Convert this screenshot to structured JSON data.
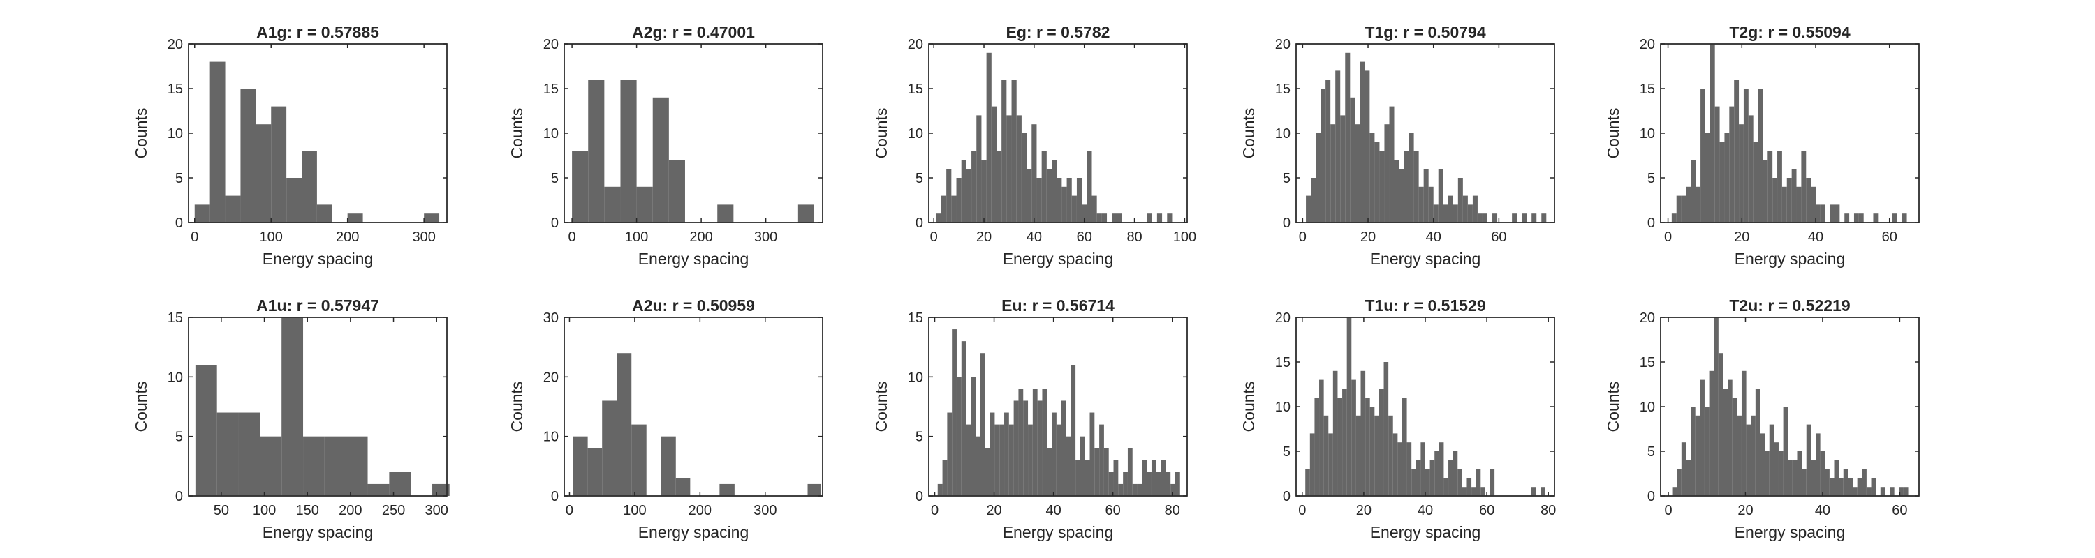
{
  "figure": {
    "bar_color": "#666666",
    "axis_color": "#262626",
    "background": "#ffffff"
  },
  "chart_data": [
    {
      "type": "bar",
      "title": "A1g: r = 0.57885",
      "xlabel": "Energy spacing",
      "ylabel": "Counts",
      "xlim": [
        -8,
        330
      ],
      "ylim": [
        0,
        20
      ],
      "xticks": [
        0,
        100,
        200,
        300
      ],
      "yticks": [
        0,
        5,
        10,
        15,
        20
      ],
      "bins": {
        "edges": [
          0,
          20,
          40,
          60,
          80,
          100,
          120,
          140,
          160,
          180,
          200,
          220,
          240,
          260,
          280,
          300,
          320
        ],
        "counts": [
          2,
          18,
          3,
          15,
          11,
          13,
          5,
          8,
          2,
          0,
          1,
          0,
          0,
          0,
          0,
          1
        ]
      }
    },
    {
      "type": "bar",
      "title": "A2g: r = 0.47001",
      "xlabel": "Energy spacing",
      "ylabel": "Counts",
      "xlim": [
        -12,
        388
      ],
      "ylim": [
        0,
        20
      ],
      "xticks": [
        0,
        100,
        200,
        300
      ],
      "yticks": [
        0,
        5,
        10,
        15,
        20
      ],
      "bins": {
        "edges": [
          0,
          25,
          50,
          75,
          100,
          125,
          150,
          175,
          200,
          225,
          250,
          275,
          300,
          325,
          350,
          375
        ],
        "counts": [
          8,
          16,
          4,
          16,
          4,
          14,
          7,
          0,
          0,
          2,
          0,
          0,
          0,
          0,
          2
        ]
      }
    },
    {
      "type": "bar",
      "title": "Eg: r = 0.5782",
      "xlabel": "Energy spacing",
      "ylabel": "Counts",
      "xlim": [
        -2,
        101
      ],
      "ylim": [
        0,
        20
      ],
      "xticks": [
        0,
        20,
        40,
        60,
        80,
        100
      ],
      "yticks": [
        0,
        5,
        10,
        15,
        20
      ],
      "bins": {
        "edges": [
          1,
          3,
          5,
          7,
          9,
          11,
          13,
          15,
          17,
          19,
          21,
          23,
          25,
          27,
          29,
          31,
          33,
          35,
          37,
          39,
          41,
          43,
          45,
          47,
          49,
          51,
          53,
          55,
          57,
          59,
          61,
          63,
          65,
          67,
          69,
          71,
          73,
          75,
          77,
          79,
          81,
          83,
          85,
          87,
          89,
          91,
          93,
          95
        ],
        "counts": [
          1,
          3,
          6,
          3,
          5,
          7,
          6,
          8,
          12,
          7,
          19,
          13,
          8,
          16,
          12,
          16,
          12,
          10,
          6,
          11,
          5,
          8,
          6,
          7,
          5,
          4,
          5,
          3,
          5,
          2,
          8,
          3,
          1,
          1,
          0,
          1,
          1,
          0,
          0,
          0,
          0,
          0,
          1,
          0,
          1,
          0,
          1
        ]
      }
    },
    {
      "type": "bar",
      "title": "T1g: r = 0.50794",
      "xlabel": "Energy spacing",
      "ylabel": "Counts",
      "xlim": [
        -2,
        77
      ],
      "ylim": [
        0,
        20
      ],
      "xticks": [
        0,
        20,
        40,
        60
      ],
      "yticks": [
        0,
        5,
        10,
        15,
        20
      ],
      "bins": {
        "edges": [
          1,
          2.5,
          4,
          5.5,
          7,
          8.5,
          10,
          11.5,
          13,
          14.5,
          16,
          17.5,
          19,
          20.5,
          22,
          23.5,
          25,
          26.5,
          28,
          29.5,
          31,
          32.5,
          34,
          35.5,
          37,
          38.5,
          40,
          41.5,
          43,
          44.5,
          46,
          47.5,
          49,
          50.5,
          52,
          53.5,
          55,
          56.5,
          58,
          59.5,
          61,
          62.5,
          64,
          65.5,
          67,
          68.5,
          70,
          71.5,
          73,
          74.5
        ],
        "counts": [
          3,
          5,
          10,
          15,
          16,
          11,
          17,
          12,
          19,
          14,
          11,
          18,
          17,
          10,
          9,
          8,
          11,
          13,
          7,
          6,
          8,
          10,
          8,
          4,
          6,
          4,
          2,
          6,
          2,
          3,
          2,
          5,
          3,
          2,
          3,
          1,
          1,
          0,
          1,
          0,
          0,
          0,
          1,
          0,
          1,
          0,
          1,
          0,
          1
        ]
      }
    },
    {
      "type": "bar",
      "title": "T2g: r = 0.55094",
      "xlabel": "Energy spacing",
      "ylabel": "Counts",
      "xlim": [
        -2,
        68
      ],
      "ylim": [
        0,
        20
      ],
      "xticks": [
        0,
        20,
        40,
        60
      ],
      "yticks": [
        0,
        5,
        10,
        15,
        20
      ],
      "bins": {
        "edges": [
          1,
          2.3,
          3.6,
          4.9,
          6.2,
          7.5,
          8.8,
          10.1,
          11.4,
          12.7,
          14,
          15.3,
          16.6,
          17.9,
          19.2,
          20.5,
          21.8,
          23.1,
          24.4,
          25.7,
          27,
          28.3,
          29.6,
          30.9,
          32.2,
          33.5,
          34.8,
          36.1,
          37.4,
          38.7,
          40,
          41.3,
          42.6,
          43.9,
          45.2,
          46.5,
          47.8,
          49.1,
          50.4,
          51.7,
          53,
          54.3,
          55.6,
          56.9,
          58.2,
          59.5,
          60.8,
          62.1,
          63.4,
          64.7
        ],
        "counts": [
          1,
          3,
          3,
          4,
          7,
          4,
          15,
          10,
          20,
          13,
          9,
          10,
          13,
          16,
          11,
          15,
          12,
          9,
          15,
          7,
          8,
          5,
          8,
          4,
          5,
          6,
          4,
          8,
          5,
          4,
          2,
          2,
          0,
          2,
          2,
          0,
          1,
          0,
          1,
          1,
          0,
          0,
          1,
          0,
          0,
          0,
          1,
          0,
          1
        ]
      }
    },
    {
      "type": "bar",
      "title": "A1u: r = 0.57947",
      "xlabel": "Energy spacing",
      "ylabel": "Counts",
      "xlim": [
        12,
        312
      ],
      "ylim": [
        0,
        15
      ],
      "xticks": [
        50,
        100,
        150,
        200,
        250,
        300
      ],
      "yticks": [
        0,
        5,
        10,
        15
      ],
      "bins": {
        "edges": [
          20,
          45,
          70,
          95,
          120,
          145,
          170,
          195,
          220,
          245,
          270,
          295,
          315
        ],
        "counts": [
          11,
          7,
          7,
          5,
          15,
          5,
          5,
          5,
          1,
          2,
          0,
          1
        ]
      }
    },
    {
      "type": "bar",
      "title": "A2u: r = 0.50959",
      "xlabel": "Energy spacing",
      "ylabel": "Counts",
      "xlim": [
        -8,
        388
      ],
      "ylim": [
        0,
        30
      ],
      "xticks": [
        0,
        100,
        200,
        300
      ],
      "yticks": [
        0,
        10,
        20,
        30
      ],
      "bins": {
        "edges": [
          5,
          28,
          50,
          73,
          95,
          118,
          140,
          163,
          185,
          208,
          230,
          253,
          275,
          298,
          320,
          343,
          365,
          385
        ],
        "counts": [
          10,
          8,
          16,
          24,
          12,
          0,
          10,
          3,
          0,
          0,
          2,
          0,
          0,
          0,
          0,
          0,
          2
        ]
      }
    },
    {
      "type": "bar",
      "title": "Eu: r = 0.56714",
      "xlabel": "Energy spacing",
      "ylabel": "Counts",
      "xlim": [
        -2,
        85
      ],
      "ylim": [
        0,
        15
      ],
      "xticks": [
        0,
        20,
        40,
        60,
        80
      ],
      "yticks": [
        0,
        5,
        10,
        15
      ],
      "bins": {
        "edges": [
          1,
          2.6,
          4.2,
          5.8,
          7.4,
          9,
          10.6,
          12.2,
          13.8,
          15.4,
          17,
          18.6,
          20.2,
          21.8,
          23.4,
          25,
          26.6,
          28.2,
          29.8,
          31.4,
          33,
          34.6,
          36.2,
          37.8,
          39.4,
          41,
          42.6,
          44.2,
          45.8,
          47.4,
          49,
          50.6,
          52.2,
          53.8,
          55.4,
          57,
          58.6,
          60.2,
          61.8,
          63.4,
          65,
          66.6,
          68.2,
          69.8,
          71.4,
          73,
          74.6,
          76.2,
          77.8,
          79.4,
          81,
          82.6
        ],
        "counts": [
          1,
          3,
          7,
          14,
          10,
          13,
          6,
          10,
          5,
          12,
          4,
          7,
          6,
          6,
          7,
          6,
          8,
          9,
          8,
          6,
          9,
          8,
          9,
          4,
          7,
          6,
          8,
          5,
          11,
          3,
          5,
          3,
          7,
          4,
          6,
          4,
          2,
          3,
          1,
          2,
          4,
          1,
          1,
          3,
          2,
          3,
          2,
          3,
          2,
          1,
          2
        ]
      }
    },
    {
      "type": "bar",
      "title": "T1u: r = 0.51529",
      "xlabel": "Energy spacing",
      "ylabel": "Counts",
      "xlim": [
        -2,
        82
      ],
      "ylim": [
        0,
        20
      ],
      "xticks": [
        0,
        20,
        40,
        60,
        80
      ],
      "yticks": [
        0,
        5,
        10,
        15,
        20
      ],
      "bins": {
        "edges": [
          1,
          2.5,
          4,
          5.5,
          7,
          8.5,
          10,
          11.5,
          13,
          14.5,
          16,
          17.5,
          19,
          20.5,
          22,
          23.5,
          25,
          26.5,
          28,
          29.5,
          31,
          32.5,
          34,
          35.5,
          37,
          38.5,
          40,
          41.5,
          43,
          44.5,
          46,
          47.5,
          49,
          50.5,
          52,
          53.5,
          55,
          56.5,
          58,
          59.5,
          61,
          62.5,
          64,
          65.5,
          67,
          68.5,
          70,
          71.5,
          73,
          74.5,
          76,
          77.5,
          79
        ],
        "counts": [
          3,
          7,
          11,
          13,
          9,
          7,
          14,
          11,
          12,
          20,
          13,
          9,
          14,
          11,
          10,
          9,
          12,
          15,
          9,
          7,
          6,
          11,
          6,
          3,
          4,
          6,
          3,
          4,
          5,
          6,
          2,
          4,
          5,
          3,
          1,
          2,
          1,
          3,
          1,
          0,
          3,
          0,
          0,
          0,
          0,
          0,
          0,
          0,
          0,
          1,
          0,
          1
        ]
      }
    },
    {
      "type": "bar",
      "title": "T2u: r = 0.52219",
      "xlabel": "Energy spacing",
      "ylabel": "Counts",
      "xlim": [
        -2,
        65
      ],
      "ylim": [
        0,
        20
      ],
      "xticks": [
        0,
        20,
        40,
        60
      ],
      "yticks": [
        0,
        5,
        10,
        15,
        20
      ],
      "bins": {
        "edges": [
          1,
          2.2,
          3.4,
          4.6,
          5.8,
          7,
          8.2,
          9.4,
          10.6,
          11.8,
          13,
          14.2,
          15.4,
          16.6,
          17.8,
          19,
          20.2,
          21.4,
          22.6,
          23.8,
          25,
          26.2,
          27.4,
          28.6,
          29.8,
          31,
          32.2,
          33.4,
          34.6,
          35.8,
          37,
          38.2,
          39.4,
          40.6,
          41.8,
          43,
          44.2,
          45.4,
          46.6,
          47.8,
          49,
          50.2,
          51.4,
          52.6,
          53.8,
          55,
          56.2,
          57.4,
          58.6,
          59.8,
          61,
          62.2
        ],
        "counts": [
          1,
          3,
          6,
          4,
          10,
          9,
          13,
          10,
          14,
          20,
          16,
          12,
          13,
          11,
          9,
          14,
          8,
          9,
          12,
          7,
          5,
          8,
          6,
          5,
          10,
          4,
          4,
          5,
          3,
          8,
          4,
          7,
          5,
          3,
          2,
          4,
          2,
          3,
          2,
          1,
          2,
          3,
          1,
          2,
          0,
          1,
          0,
          1,
          0,
          1,
          1
        ]
      }
    }
  ]
}
